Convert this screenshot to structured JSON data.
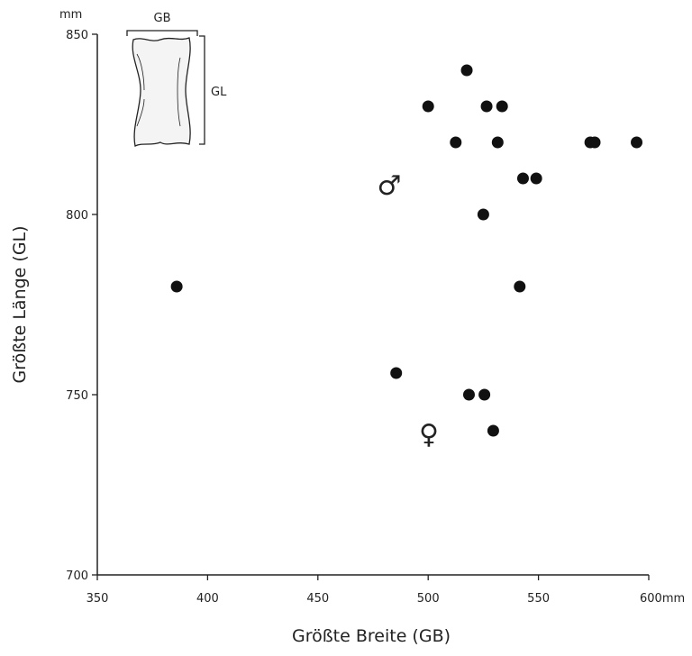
{
  "chart_data": {
    "type": "scatter",
    "x_label": "Größte Breite (GB)",
    "y_label": "Größte Länge (GL)",
    "y_unit": "mm",
    "xlim": [
      350,
      600
    ],
    "ylim": [
      700,
      850
    ],
    "xticks": [
      350,
      400,
      450,
      500,
      550,
      {
        "value": 600,
        "label": "600mm"
      }
    ],
    "yticks": [
      700,
      750,
      800,
      850
    ],
    "color": "#111111",
    "x": [
      386,
      500,
      517.5,
      512.5,
      526.5,
      533.5,
      531.5,
      573.5,
      575.5,
      594.5,
      543,
      549,
      525,
      541.5,
      485.5,
      518.5,
      525.5,
      529.5
    ],
    "y": [
      780,
      830,
      840,
      820,
      830,
      830,
      820,
      820,
      820,
      820,
      810,
      810,
      800,
      780,
      756,
      750,
      750,
      740
    ],
    "annotations": [
      "♂",
      "♀"
    ],
    "inset_labels": [
      "GB",
      "GL"
    ]
  }
}
